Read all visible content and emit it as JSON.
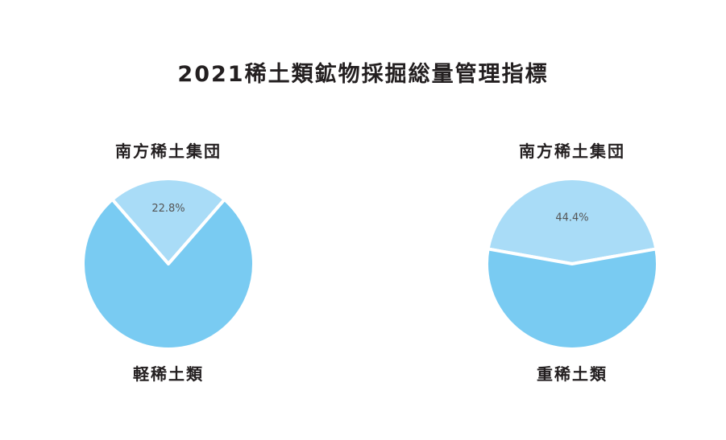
{
  "title": "2021稀土類鉱物採掘総量管理指標",
  "colors": {
    "major": "#79cbf2",
    "minor": "#a9dcf7",
    "separator": "#ffffff"
  },
  "chart_data": [
    {
      "type": "pie",
      "slices": [
        {
          "label": "南方稀土集団",
          "value": 22.8,
          "value_label": "22.8%",
          "color": "#a9dcf7"
        },
        {
          "label": "軽稀土類",
          "value": 77.2,
          "color": "#79cbf2"
        }
      ]
    },
    {
      "type": "pie",
      "slices": [
        {
          "label": "南方稀土集団",
          "value": 44.4,
          "value_label": "44.4%",
          "color": "#a9dcf7"
        },
        {
          "label": "重稀土類",
          "value": 55.6,
          "color": "#79cbf2"
        }
      ]
    }
  ]
}
